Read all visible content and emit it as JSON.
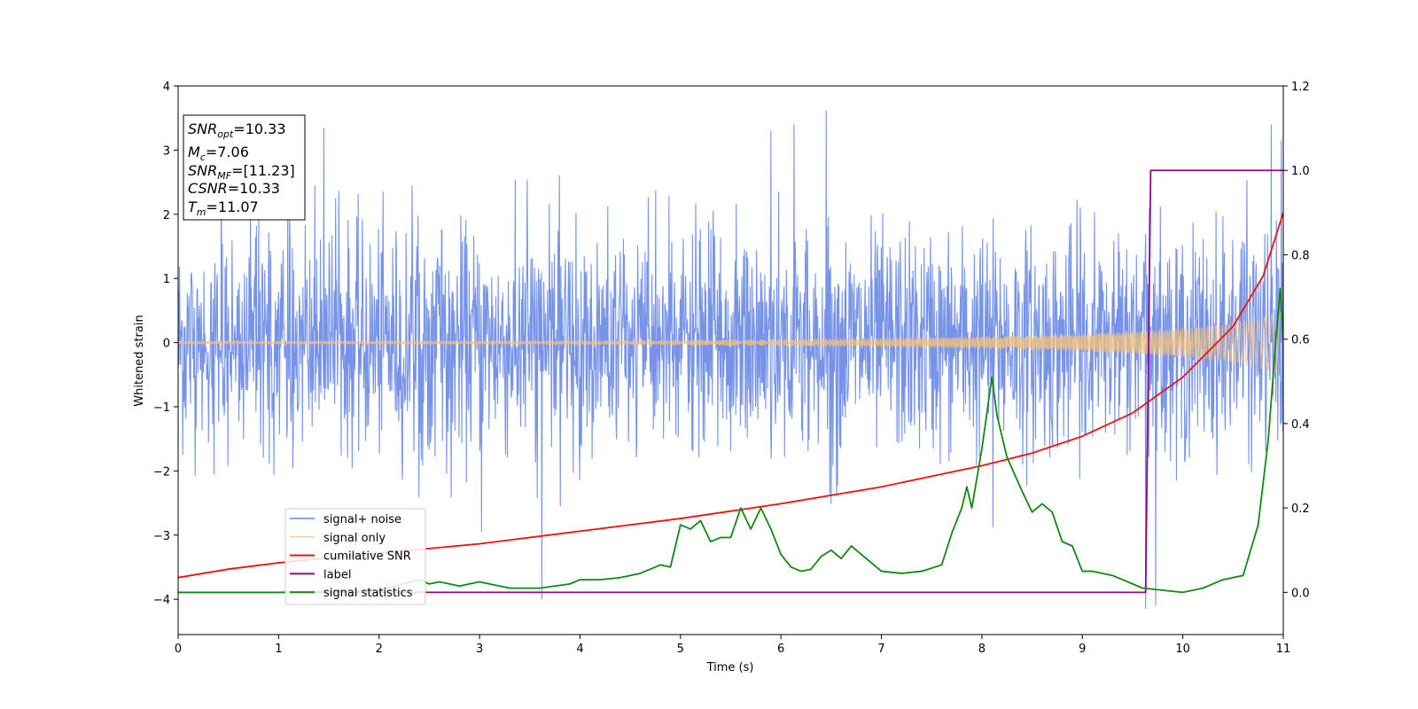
{
  "chart_data": {
    "type": "line",
    "xlabel": "Time (s)",
    "ylabel": "Whitened strain",
    "xlim": [
      0,
      11
    ],
    "ylim_left": [
      -4.55,
      4
    ],
    "ylim_right": [
      -0.1,
      1.2
    ],
    "x_ticks": [
      "0",
      "1",
      "2",
      "3",
      "4",
      "5",
      "6",
      "7",
      "8",
      "9",
      "10",
      "11"
    ],
    "y_ticks_left": [
      "4",
      "3",
      "2",
      "1",
      "0",
      "−1",
      "−2",
      "−3",
      "−4"
    ],
    "y_ticks_right": [
      "1.2",
      "1.0",
      "0.8",
      "0.6",
      "0.4",
      "0.2",
      "0.0"
    ],
    "grid": false,
    "legend_position": "lower-left",
    "annotation": {
      "lines": [
        {
          "symbol": "SNR",
          "sub": "opt",
          "value": "=10.33"
        },
        {
          "symbol": "M",
          "sub": "c",
          "value": "=7.06"
        },
        {
          "symbol": "SNR",
          "sub": "MF",
          "value": "=[11.23]"
        },
        {
          "symbol": "CSNR",
          "sub": "",
          "value": "=10.33"
        },
        {
          "symbol": "T",
          "sub": "m",
          "value": "=11.07"
        }
      ]
    },
    "series": [
      {
        "name": "signal+ noise",
        "axis": "left",
        "color": "#6484e4",
        "kind": "noise",
        "sigma": 0.85,
        "envelope_top": [
          [
            0,
            2.4
          ],
          [
            0.5,
            2.7
          ],
          [
            1.5,
            2.5
          ],
          [
            3.5,
            2.6
          ],
          [
            5.5,
            2.8
          ],
          [
            7,
            2.5
          ],
          [
            9,
            2.6
          ],
          [
            10.5,
            2.6
          ],
          [
            11,
            2.9
          ]
        ],
        "envelope_bottom": [
          [
            0,
            -2.2
          ],
          [
            1.5,
            -2.3
          ],
          [
            3.5,
            -2.6
          ],
          [
            5.5,
            -2.6
          ],
          [
            7,
            -2.5
          ],
          [
            9,
            -2.4
          ],
          [
            10.5,
            -2.2
          ],
          [
            11,
            -2.5
          ]
        ],
        "spikes": [
          [
            0.43,
            3.55
          ],
          [
            1.45,
            3.35
          ],
          [
            3.62,
            -4.0
          ],
          [
            6.45,
            3.62
          ],
          [
            9.63,
            -4.15
          ],
          [
            9.73,
            -4.1
          ],
          [
            10.98,
            3.15
          ],
          [
            10.88,
            3.4
          ],
          [
            8.11,
            -2.88
          ],
          [
            3.02,
            -2.95
          ],
          [
            5.9,
            3.3
          ],
          [
            6.13,
            3.4
          ]
        ]
      },
      {
        "name": "signal only",
        "axis": "left",
        "color": "#f5c17a",
        "kind": "chirp",
        "amp_points": [
          [
            0,
            0.02
          ],
          [
            4,
            0.03
          ],
          [
            6,
            0.05
          ],
          [
            8,
            0.09
          ],
          [
            9,
            0.13
          ],
          [
            10,
            0.22
          ],
          [
            10.5,
            0.3
          ],
          [
            11,
            0.48
          ]
        ]
      },
      {
        "name": "cumilative SNR",
        "axis": "right",
        "color": "#ee1111",
        "x": [
          0,
          0.5,
          1,
          2,
          3,
          4,
          5,
          6,
          7,
          8,
          8.5,
          9,
          9.5,
          10,
          10.5,
          10.8,
          11
        ],
        "y": [
          0.035,
          0.055,
          0.07,
          0.093,
          0.115,
          0.145,
          0.175,
          0.21,
          0.25,
          0.3,
          0.33,
          0.37,
          0.425,
          0.51,
          0.63,
          0.75,
          0.9
        ]
      },
      {
        "name": "label",
        "axis": "right",
        "color": "#8b0a8b",
        "x": [
          0,
          9.63,
          9.68,
          11
        ],
        "y": [
          0.0,
          0.0,
          1.0,
          1.0
        ]
      },
      {
        "name": "signal statistics",
        "axis": "right",
        "color": "#118811",
        "x": [
          0,
          1,
          2,
          2.4,
          2.5,
          2.6,
          2.8,
          3.0,
          3.3,
          3.6,
          3.9,
          4.0,
          4.2,
          4.4,
          4.6,
          4.8,
          4.9,
          5.0,
          5.1,
          5.2,
          5.3,
          5.4,
          5.5,
          5.6,
          5.7,
          5.8,
          5.9,
          6.0,
          6.1,
          6.2,
          6.3,
          6.4,
          6.5,
          6.6,
          6.7,
          6.8,
          6.9,
          7.0,
          7.2,
          7.4,
          7.6,
          7.7,
          7.8,
          7.85,
          7.9,
          8.0,
          8.1,
          8.15,
          8.25,
          8.4,
          8.5,
          8.6,
          8.7,
          8.8,
          8.9,
          9.0,
          9.1,
          9.3,
          9.6,
          9.8,
          10.0,
          10.2,
          10.4,
          10.6,
          10.75,
          10.85,
          10.92,
          10.97,
          11.0
        ],
        "y": [
          0.0,
          0.0,
          0.005,
          0.03,
          0.02,
          0.025,
          0.015,
          0.025,
          0.01,
          0.01,
          0.02,
          0.03,
          0.03,
          0.035,
          0.045,
          0.065,
          0.06,
          0.16,
          0.15,
          0.17,
          0.12,
          0.13,
          0.13,
          0.2,
          0.15,
          0.2,
          0.15,
          0.09,
          0.06,
          0.05,
          0.055,
          0.085,
          0.1,
          0.08,
          0.11,
          0.09,
          0.07,
          0.05,
          0.045,
          0.05,
          0.065,
          0.14,
          0.2,
          0.25,
          0.2,
          0.34,
          0.51,
          0.42,
          0.32,
          0.24,
          0.19,
          0.21,
          0.19,
          0.12,
          0.11,
          0.05,
          0.05,
          0.04,
          0.01,
          0.005,
          0.0,
          0.01,
          0.03,
          0.04,
          0.16,
          0.36,
          0.58,
          0.72,
          0.6
        ]
      }
    ]
  }
}
